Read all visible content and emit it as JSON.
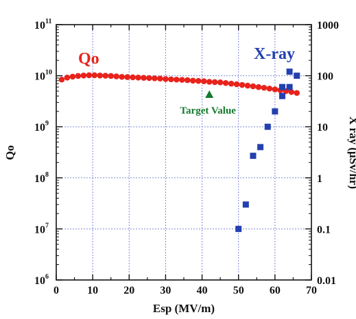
{
  "chart_data": {
    "type": "scatter",
    "xlabel": "Esp (MV/m)",
    "ylabel_left": "Qo",
    "ylabel_right": "X ray (μSv/hr)",
    "xlim": [
      0,
      70
    ],
    "xticks": [
      0,
      10,
      20,
      30,
      40,
      50,
      60,
      70
    ],
    "ylim_left": [
      1000000.0,
      100000000000.0
    ],
    "yscale_left": "log",
    "yticks_left": [
      {
        "base": "10",
        "exp": "6"
      },
      {
        "base": "10",
        "exp": "7"
      },
      {
        "base": "10",
        "exp": "8"
      },
      {
        "base": "10",
        "exp": "9"
      },
      {
        "base": "10",
        "exp": "10"
      },
      {
        "base": "10",
        "exp": "11"
      }
    ],
    "ylim_right": [
      0.01,
      1000
    ],
    "yscale_right": "log",
    "yticks_right": [
      "0.01",
      "0.1",
      "1",
      "10",
      "100",
      "1000"
    ],
    "grid": true,
    "series": [
      {
        "name": "Qo",
        "axis": "left",
        "color": "#e8231c",
        "marker": "circle",
        "x": [
          1.5,
          3,
          4.5,
          6,
          7.5,
          9,
          10.5,
          12,
          13.5,
          15,
          16.5,
          18,
          19.5,
          21,
          22.5,
          24,
          25.5,
          27,
          28.5,
          30,
          31.5,
          33,
          34.5,
          36,
          37.5,
          39,
          40.5,
          42,
          43.5,
          45,
          46.5,
          48,
          49.5,
          51,
          52.5,
          54,
          55.5,
          57,
          58.5,
          60,
          61.5,
          63,
          64.5,
          66
        ],
        "y": [
          8400000000.0,
          9200000000.0,
          9600000000.0,
          9900000000.0,
          10100000000.0,
          10200000000.0,
          10200000000.0,
          10100000000.0,
          10000000000.0,
          9900000000.0,
          9700000000.0,
          9500000000.0,
          9400000000.0,
          9300000000.0,
          9200000000.0,
          9100000000.0,
          9000000000.0,
          8900000000.0,
          8800000000.0,
          8600000000.0,
          8500000000.0,
          8400000000.0,
          8300000000.0,
          8200000000.0,
          8000000000.0,
          7900000000.0,
          7800000000.0,
          7600000000.0,
          7500000000.0,
          7400000000.0,
          7200000000.0,
          7000000000.0,
          6800000000.0,
          6600000000.0,
          6400000000.0,
          6200000000.0,
          6000000000.0,
          5800000000.0,
          5600000000.0,
          5400000000.0,
          5200000000.0,
          5000000000.0,
          4800000000.0,
          4600000000.0
        ]
      },
      {
        "name": "X-ray",
        "axis": "right",
        "color": "#2340b0",
        "marker": "square",
        "x": [
          50,
          52,
          54,
          56,
          58,
          60,
          62,
          62,
          64,
          64,
          66
        ],
        "y": [
          0.1,
          0.3,
          2.7,
          4,
          10,
          20,
          40,
          60,
          60,
          120,
          100
        ]
      }
    ],
    "annotations": [
      {
        "text": "Target Value",
        "x": 42,
        "y": 4300000000.0,
        "marker": "triangle",
        "color": "#157a2e"
      }
    ]
  }
}
